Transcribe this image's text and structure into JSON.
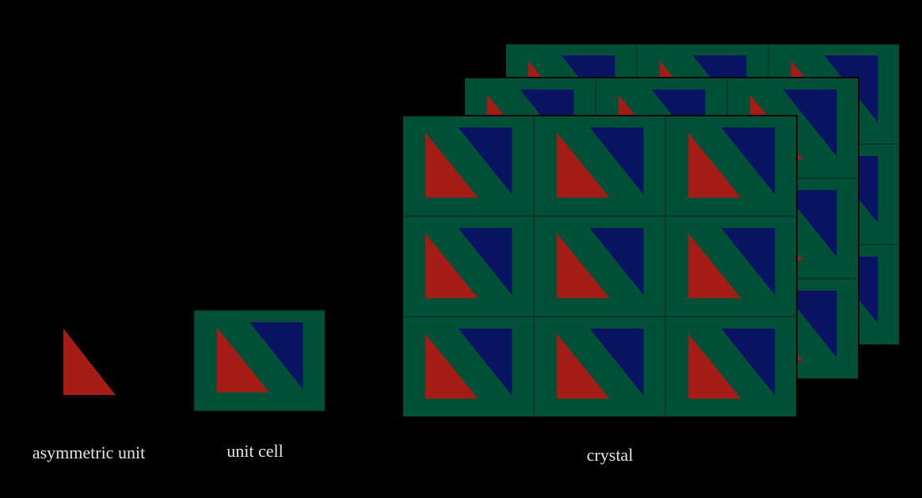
{
  "labels": {
    "asymmetric_unit": "asymmetric unit",
    "unit_cell": "unit cell",
    "crystal": "crystal"
  },
  "colors": {
    "background": "#000000",
    "cell_fill": "#005038",
    "red_triangle": "#a51c16",
    "blue_triangle": "#081461",
    "gridline": "#002a1c",
    "caption_text": "#e6e6e6"
  },
  "crystal": {
    "rows": 3,
    "columns": 3,
    "layers": 3
  }
}
